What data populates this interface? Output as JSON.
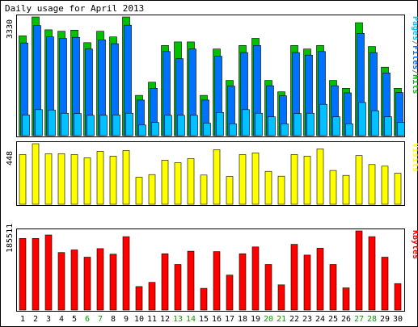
{
  "chart_data": {
    "type": "bar",
    "title": "Daily usage for April 2013",
    "categories": [
      "1",
      "2",
      "3",
      "4",
      "5",
      "6",
      "7",
      "8",
      "9",
      "10",
      "11",
      "12",
      "13",
      "14",
      "15",
      "16",
      "17",
      "18",
      "19",
      "20",
      "21",
      "22",
      "23",
      "24",
      "25",
      "26",
      "27",
      "28",
      "29",
      "30"
    ],
    "weekend_days": [
      "6",
      "7",
      "13",
      "14",
      "20",
      "21",
      "27",
      "28"
    ],
    "panels": [
      {
        "name": "hits_files_pages",
        "ymax_label": "3330",
        "ymax": 3330,
        "legend": [
          {
            "text": "Pages",
            "color": "#00c0ff"
          },
          {
            "text": "/",
            "color": "#808080"
          },
          {
            "text": "Files",
            "color": "#0070ff"
          },
          {
            "text": "/",
            "color": "#808080"
          },
          {
            "text": "Hits",
            "color": "#00c000"
          }
        ],
        "series": [
          {
            "name": "Hits",
            "color": "#00c000",
            "values": [
              2800,
              3330,
              2970,
              2930,
              2960,
              2610,
              2930,
              2770,
              3330,
              1130,
              1500,
              2530,
              2630,
              2630,
              1130,
              2430,
              1550,
              2530,
              2730,
              1550,
              1230,
              2530,
              2430,
              2530,
              1550,
              1330,
              3170,
              2500,
              1920,
              1330
            ]
          },
          {
            "name": "Files",
            "color": "#0070ff",
            "values": [
              2600,
              3090,
              2770,
              2730,
              2760,
              2430,
              2690,
              2580,
              3100,
              1000,
              1330,
              2360,
              2160,
              2430,
              1000,
              2230,
              1390,
              2330,
              2530,
              1400,
              1120,
              2330,
              2260,
              2360,
              1400,
              1200,
              2870,
              2330,
              1760,
              1210
            ]
          },
          {
            "name": "Pages",
            "color": "#00c0ff",
            "values": [
              580,
              730,
              720,
              630,
              620,
              570,
              570,
              580,
              630,
              300,
              370,
              570,
              570,
              570,
              350,
              650,
              330,
              730,
              630,
              530,
              330,
              620,
              630,
              880,
              530,
              330,
              930,
              700,
              530,
              370
            ]
          }
        ]
      },
      {
        "name": "visits",
        "ymax_label": "448",
        "ymax": 448,
        "legend": [
          {
            "text": "Visits",
            "color": "#ffff00"
          }
        ],
        "series": [
          {
            "name": "Visits",
            "color": "#ffff00",
            "values": [
              368,
              448,
              374,
              374,
              368,
              344,
              392,
              356,
              398,
              200,
              220,
              326,
              308,
              338,
              216,
              404,
              206,
              368,
              380,
              244,
              208,
              368,
              356,
              410,
              250,
              214,
              360,
              294,
              282,
              230
            ]
          }
        ]
      },
      {
        "name": "kbytes",
        "ymax_label": "185511",
        "ymax": 185511,
        "legend": [
          {
            "text": "KBytes",
            "color": "#ff0000"
          }
        ],
        "series": [
          {
            "name": "KBytes",
            "color": "#ff0000",
            "values": [
              168000,
              168000,
              176000,
              135000,
              141000,
              124000,
              144000,
              131000,
              172000,
              55000,
              65000,
              132000,
              107000,
              138000,
              51000,
              137000,
              82000,
              132000,
              148000,
              107000,
              59000,
              154000,
              129000,
              145000,
              107000,
              52000,
              185511,
              172000,
              124000,
              62000
            ]
          }
        ]
      }
    ],
    "colors": {
      "page_background": "#ffffff",
      "plot_background": "#ffffff",
      "frame": "#000000",
      "weekday_label": "#000000",
      "weekend_label": "#00a000"
    }
  }
}
